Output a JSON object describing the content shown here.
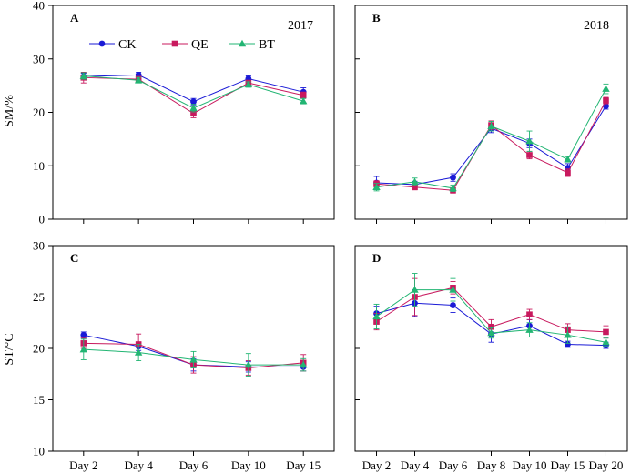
{
  "colors": {
    "CK": "#1a1ad6",
    "QE": "#c8195e",
    "BT": "#22b573"
  },
  "legend": [
    "CK",
    "QE",
    "BT"
  ],
  "chart_data": [
    {
      "id": "A",
      "type": "line",
      "letter": "A",
      "year": "2017",
      "ylabel": "SM/%",
      "ylim": [
        0,
        40
      ],
      "yticks": [
        0,
        10,
        20,
        30,
        40
      ],
      "categories": [
        "Day 2",
        "Day 4",
        "Day 6",
        "Day 10",
        "Day 15"
      ],
      "show_xticklabels": false,
      "series": [
        {
          "name": "CK",
          "values": [
            26.7,
            27.0,
            22.0,
            26.3,
            23.8
          ],
          "errors": [
            0.6,
            0.5,
            0.6,
            0.5,
            0.8
          ]
        },
        {
          "name": "QE",
          "values": [
            26.5,
            26.2,
            19.8,
            25.5,
            23.2
          ],
          "errors": [
            1.0,
            0.5,
            0.8,
            0.5,
            0.6
          ]
        },
        {
          "name": "BT",
          "values": [
            26.8,
            26.0,
            20.8,
            25.2,
            22.1
          ],
          "errors": [
            0.6,
            0.5,
            0.7,
            0.5,
            0.5
          ]
        }
      ]
    },
    {
      "id": "B",
      "type": "line",
      "letter": "B",
      "year": "2018",
      "ylabel": "",
      "ylim": [
        0,
        40
      ],
      "yticks": [
        0,
        10,
        20,
        30,
        40
      ],
      "categories": [
        "Day 2",
        "Day 4",
        "Day 6",
        "Day 8",
        "Day 10",
        "Day 15",
        "Day 20"
      ],
      "show_xticklabels": false,
      "series": [
        {
          "name": "CK",
          "values": [
            6.8,
            6.5,
            7.8,
            17.0,
            14.2,
            9.6,
            21.2
          ],
          "errors": [
            1.2,
            0.6,
            0.7,
            0.8,
            0.8,
            0.8,
            0.6
          ]
        },
        {
          "name": "QE",
          "values": [
            6.6,
            6.0,
            5.4,
            17.6,
            12.0,
            8.7,
            22.2
          ],
          "errors": [
            0.6,
            0.5,
            0.5,
            0.8,
            0.7,
            0.7,
            0.6
          ]
        },
        {
          "name": "BT",
          "values": [
            6.0,
            7.0,
            5.8,
            17.4,
            14.6,
            11.2,
            24.4
          ],
          "errors": [
            0.7,
            0.7,
            0.6,
            0.9,
            1.9,
            0.5,
            0.9
          ]
        }
      ]
    },
    {
      "id": "C",
      "type": "line",
      "letter": "C",
      "year": "",
      "ylabel": "ST/°C",
      "ylim": [
        10,
        30
      ],
      "yticks": [
        10,
        15,
        20,
        25,
        30
      ],
      "categories": [
        "Day 2",
        "Day 4",
        "Day 6",
        "Day 10",
        "Day 15"
      ],
      "show_xticklabels": true,
      "series": [
        {
          "name": "CK",
          "values": [
            21.3,
            20.2,
            18.4,
            18.2,
            18.2
          ],
          "errors": [
            0.3,
            0.4,
            0.6,
            0.5,
            0.4
          ]
        },
        {
          "name": "QE",
          "values": [
            20.5,
            20.4,
            18.4,
            18.1,
            18.6
          ],
          "errors": [
            0.5,
            1.0,
            0.8,
            0.7,
            0.8
          ]
        },
        {
          "name": "BT",
          "values": [
            19.9,
            19.6,
            18.9,
            18.4,
            18.4
          ],
          "errors": [
            1.0,
            0.8,
            0.8,
            1.1,
            0.6
          ]
        }
      ]
    },
    {
      "id": "D",
      "type": "line",
      "letter": "D",
      "year": "",
      "ylabel": "",
      "ylim": [
        10,
        30
      ],
      "yticks": [
        10,
        15,
        20,
        25,
        30
      ],
      "categories": [
        "Day 2",
        "Day 4",
        "Day 6",
        "Day 8",
        "Day 10",
        "Day 15",
        "Day 20"
      ],
      "show_xticklabels": true,
      "series": [
        {
          "name": "CK",
          "values": [
            23.4,
            24.4,
            24.2,
            21.4,
            22.2,
            20.4,
            20.3
          ],
          "errors": [
            0.7,
            1.3,
            0.7,
            0.8,
            0.6,
            0.3,
            0.3
          ]
        },
        {
          "name": "QE",
          "values": [
            22.6,
            25.0,
            25.9,
            22.1,
            23.3,
            21.8,
            21.6
          ],
          "errors": [
            0.8,
            1.8,
            0.6,
            0.7,
            0.5,
            0.6,
            0.6
          ]
        },
        {
          "name": "BT",
          "values": [
            23.1,
            25.7,
            25.7,
            21.5,
            21.8,
            21.3,
            20.6
          ],
          "errors": [
            1.2,
            1.6,
            1.1,
            0.5,
            0.7,
            0.8,
            0.4
          ]
        }
      ]
    }
  ]
}
